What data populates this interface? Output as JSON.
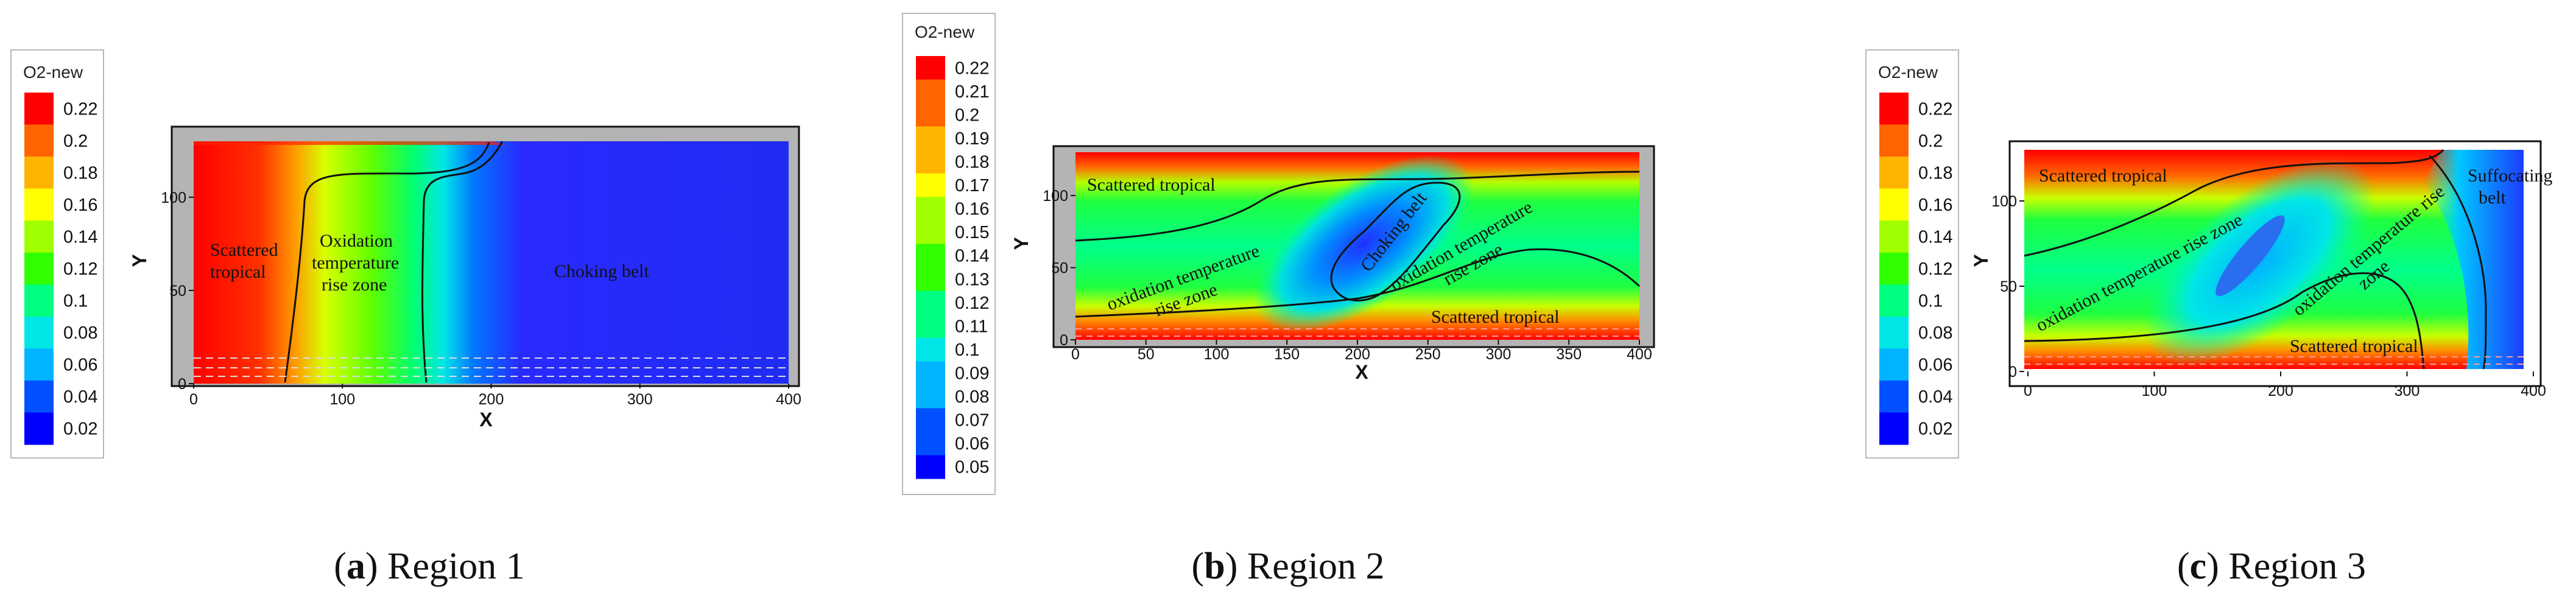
{
  "colors": {
    "scale": [
      "#0000ff",
      "#0050ff",
      "#00b4ff",
      "#00e6e6",
      "#00ff80",
      "#32ff00",
      "#a0ff00",
      "#ffff00",
      "#ffb400",
      "#ff6400",
      "#ff0000"
    ]
  },
  "chart_data": [
    {
      "type": "heatmap",
      "caption_letter": "a",
      "caption_text": " Region 1",
      "legend": {
        "title": "O2-new",
        "ticks": [
          "0.22",
          "0.2",
          "0.18",
          "0.16",
          "0.14",
          "0.12",
          "0.1",
          "0.08",
          "0.06",
          "0.04",
          "0.02"
        ],
        "range": [
          0.02,
          0.22
        ]
      },
      "xlabel": "X",
      "ylabel": "Y",
      "xlim": [
        0,
        400
      ],
      "ylim": [
        0,
        130
      ],
      "xticks": [
        "0",
        "100",
        "200",
        "300",
        "400"
      ],
      "yticks": [
        "0",
        "50",
        "100"
      ],
      "ytick_values": [
        0,
        50,
        100
      ],
      "annotations": [
        "Scattered tropical",
        "Oxidation temperature rise zone",
        "Choking belt"
      ]
    },
    {
      "type": "heatmap",
      "caption_letter": "b",
      "caption_text": " Region 2",
      "legend": {
        "title": "O2-new",
        "ticks": [
          "0.22",
          "0.21",
          "0.2",
          "0.19",
          "0.18",
          "0.17",
          "0.16",
          "0.15",
          "0.14",
          "0.13",
          "0.12",
          "0.11",
          "0.1",
          "0.09",
          "0.08",
          "0.07",
          "0.06",
          "0.05"
        ],
        "range": [
          0.05,
          0.22
        ]
      },
      "xlabel": "X",
      "ylabel": "Y",
      "xlim": [
        0,
        400
      ],
      "ylim": [
        0,
        130
      ],
      "xticks": [
        "0",
        "50",
        "100",
        "150",
        "200",
        "250",
        "300",
        "350",
        "400"
      ],
      "yticks": [
        "0",
        "50",
        "100"
      ],
      "ytick_values": [
        0,
        50,
        100
      ],
      "annotations": [
        "Scattered tropical",
        "oxidation temperature rise zone",
        "Choking belt",
        "oxidation temperature rise zone",
        "Scattered tropical"
      ]
    },
    {
      "type": "heatmap",
      "caption_letter": "c",
      "caption_text": " Region 3",
      "legend": {
        "title": "O2-new",
        "ticks": [
          "0.22",
          "0.2",
          "0.18",
          "0.16",
          "0.14",
          "0.12",
          "0.1",
          "0.08",
          "0.06",
          "0.04",
          "0.02"
        ],
        "range": [
          0.02,
          0.22
        ]
      },
      "xlabel": "X",
      "ylabel": "Y",
      "xlim": [
        0,
        400
      ],
      "ylim": [
        0,
        130
      ],
      "xticks": [
        "0",
        "100",
        "200",
        "300",
        "400"
      ],
      "yticks": [
        "0",
        "50",
        "100"
      ],
      "ytick_values": [
        0,
        50,
        100
      ],
      "annotations": [
        "Scattered tropical",
        "oxidation temperature rise zone",
        "oxidation temperature rise zone",
        "Suffocating belt",
        "Scattered tropical"
      ]
    }
  ]
}
